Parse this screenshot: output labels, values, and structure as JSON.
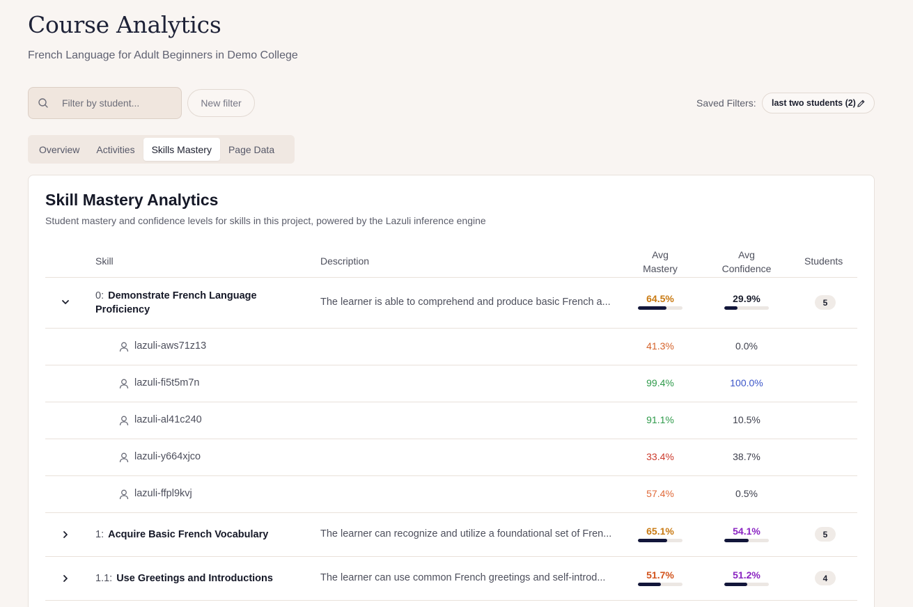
{
  "header": {
    "title": "Course Analytics",
    "subtitle": "French Language for Adult Beginners in Demo College"
  },
  "filters": {
    "search_placeholder": "Filter by student...",
    "new_filter_label": "New filter",
    "saved_label": "Saved Filters:",
    "saved_chip_label": "last two students (2)"
  },
  "tabs": [
    {
      "label": "Overview",
      "active": false
    },
    {
      "label": "Activities",
      "active": false
    },
    {
      "label": "Skills Mastery",
      "active": true
    },
    {
      "label": "Page Data",
      "active": false
    }
  ],
  "panel": {
    "title": "Skill Mastery Analytics",
    "description": "Student mastery and confidence levels for skills in this project, powered by the Lazuli inference engine"
  },
  "columns": {
    "skill": "Skill",
    "description": "Description",
    "avg_mastery_1": "Avg",
    "avg_mastery_2": "Mastery",
    "avg_confidence_1": "Avg",
    "avg_confidence_2": "Confidence",
    "students": "Students"
  },
  "skills": [
    {
      "number": "0:",
      "name_line1": "Demonstrate French Language",
      "name_line2": "Proficiency",
      "description": "The learner is able to comprehend and produce basic French a...",
      "mastery": "64.5%",
      "mastery_fraction": 0.645,
      "mastery_color": "#c97a12",
      "confidence": "29.9%",
      "confidence_fraction": 0.299,
      "confidence_color": "#1c1f2e",
      "students": "5",
      "expanded": true,
      "icon": "chevron-down-icon"
    },
    {
      "number": "1:",
      "name": "Acquire Basic French Vocabulary",
      "description": "The learner can recognize and utilize a foundational set of Fren...",
      "mastery": "65.1%",
      "mastery_fraction": 0.651,
      "mastery_color": "#c97a12",
      "confidence": "54.1%",
      "confidence_fraction": 0.541,
      "confidence_color": "#8a24c2",
      "students": "5",
      "expanded": false,
      "icon": "chevron-right-icon"
    },
    {
      "number": "1.1:",
      "name": "Use Greetings and Introductions",
      "description": "The learner can use common French greetings and self-introd...",
      "mastery": "51.7%",
      "mastery_fraction": 0.517,
      "mastery_color": "#d2531c",
      "confidence": "51.2%",
      "confidence_fraction": 0.512,
      "confidence_color": "#8a24c2",
      "students": "4",
      "expanded": false,
      "icon": "chevron-right-icon"
    }
  ],
  "students": [
    {
      "id": "lazuli-aws71z13",
      "mastery": "41.3%",
      "mastery_color": "#d5622a",
      "confidence": "0.0%",
      "confidence_color": "#3e404d"
    },
    {
      "id": "lazuli-fi5t5m7n",
      "mastery": "99.4%",
      "mastery_color": "#2e9a4a",
      "confidence": "100.0%",
      "confidence_color": "#3b55c9"
    },
    {
      "id": "lazuli-al41c240",
      "mastery": "91.1%",
      "mastery_color": "#2e9a4a",
      "confidence": "10.5%",
      "confidence_color": "#3e404d"
    },
    {
      "id": "lazuli-y664xjco",
      "mastery": "33.4%",
      "mastery_color": "#cc3a2c",
      "confidence": "38.7%",
      "confidence_color": "#3e404d"
    },
    {
      "id": "lazuli-ffpl9kvj",
      "mastery": "57.4%",
      "mastery_color": "#e06a3a",
      "confidence": "0.5%",
      "confidence_color": "#3e404d"
    }
  ]
}
